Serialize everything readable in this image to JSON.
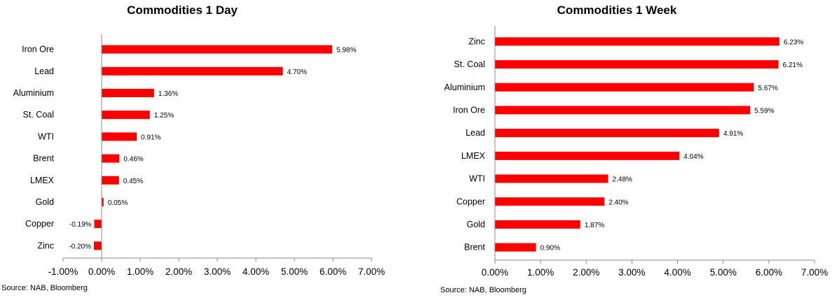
{
  "source_left": "Source: NAB, Bloomberg",
  "source_right": "Source: NAB, Bloomberg",
  "chart_data": [
    {
      "type": "bar",
      "orientation": "horizontal",
      "title": "Commodities 1 Day",
      "categories": [
        "Iron Ore",
        "Lead",
        "Aluminium",
        "St. Coal",
        "WTI",
        "Brent",
        "LMEX",
        "Gold",
        "Copper",
        "Zinc"
      ],
      "values": [
        5.98,
        4.7,
        1.36,
        1.25,
        0.91,
        0.46,
        0.45,
        0.05,
        -0.19,
        -0.2
      ],
      "value_labels": [
        "5.98%",
        "4.70%",
        "1.36%",
        "1.25%",
        "0.91%",
        "0.46%",
        "0.45%",
        "0.05%",
        "-0.19%",
        "-0.20%"
      ],
      "xlim": [
        -1,
        7
      ],
      "xticks": [
        -1,
        0,
        1,
        2,
        3,
        4,
        5,
        6,
        7
      ],
      "xtick_labels": [
        "-1.00%",
        "0.00%",
        "1.00%",
        "2.00%",
        "3.00%",
        "4.00%",
        "5.00%",
        "6.00%",
        "7.00%"
      ],
      "xlabel": "",
      "ylabel": "",
      "grid": false,
      "legend": false,
      "bar_color": "#ff0000"
    },
    {
      "type": "bar",
      "orientation": "horizontal",
      "title": "Commodities 1 Week",
      "categories": [
        "Zinc",
        "St. Coal",
        "Aluminium",
        "Iron Ore",
        "Lead",
        "LMEX",
        "WTI",
        "Copper",
        "Gold",
        "Brent"
      ],
      "values": [
        6.23,
        6.21,
        5.67,
        5.59,
        4.91,
        4.04,
        2.48,
        2.4,
        1.87,
        0.9
      ],
      "value_labels": [
        "6.23%",
        "6.21%",
        "5.67%",
        "5.59%",
        "4.91%",
        "4.04%",
        "2.48%",
        "2.40%",
        "1.87%",
        "0.90%"
      ],
      "xlim": [
        0,
        7
      ],
      "xticks": [
        0,
        1,
        2,
        3,
        4,
        5,
        6,
        7
      ],
      "xtick_labels": [
        "0.00%",
        "1.00%",
        "2.00%",
        "3.00%",
        "4.00%",
        "5.00%",
        "6.00%",
        "7.00%"
      ],
      "xlabel": "",
      "ylabel": "",
      "grid": false,
      "legend": false,
      "bar_color": "#ff0000"
    }
  ]
}
